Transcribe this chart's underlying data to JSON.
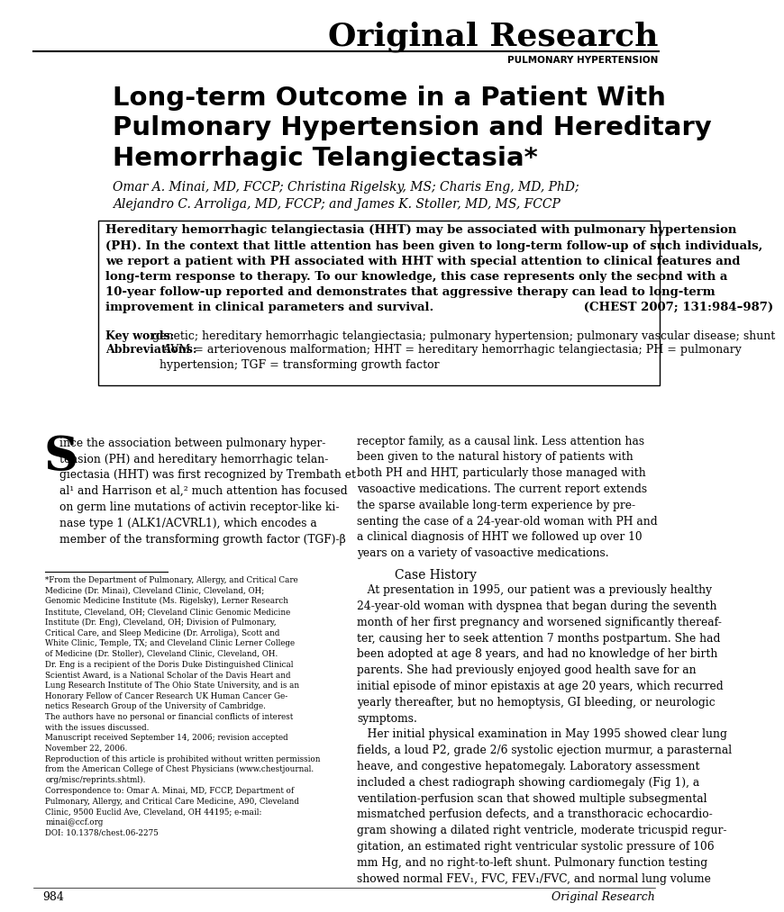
{
  "bg_color": "#ffffff",
  "header_title": "Original Research",
  "header_subtitle": "PULMONARY HYPERTENSION",
  "article_title": "Long-term Outcome in a Patient With\nPulmonary Hypertension and Hereditary\nHemorrhagic Telangiectasia*",
  "authors": "Omar A. Minai, MD, FCCP; Christina Rigelsky, MS; Charis Eng, MD, PhD;\nAlejandro C. Arroliga, MD, FCCP; and James K. Stoller, MD, MS, FCCP",
  "abstract_text": "Hereditary hemorrhagic telangiectasia (HHT) may be associated with pulmonary hypertension\n(PH). In the context that little attention has been given to long-term follow-up of such individuals,\nwe report a patient with PH associated with HHT with special attention to clinical features and\nlong-term response to therapy. To our knowledge, this case represents only the second with a\n10-year follow-up reported and demonstrates that aggressive therapy can lead to long-term\nimprovement in clinical parameters and survival.                                    (CHEST 2007; 131:984–987)",
  "keywords_label": "Key words:",
  "keywords_text": " genetic; hereditary hemorrhagic telangiectasia; pulmonary hypertension; pulmonary vascular disease; shunt",
  "abbrev_label": "Abbreviations:",
  "abbrev_text": " AVM = arteriovenous malformation; HHT = hereditary hemorrhagic telangiectasia; PH = pulmonary\nhypertension; TGF = transforming growth factor",
  "body_left_col": "ince the association between pulmonary hyper-\ntension (PH) and hereditary hemorrhagic telan-\ngiectasia (HHT) was first recognized by Trembath et\nal¹ and Harrison et al,² much attention has focused\non germ line mutations of activin receptor-like ki-\nnase type 1 (ALK1/ACVRL1), which encodes a\nmember of the transforming growth factor (TGF)-β",
  "body_right_col": "receptor family, as a causal link. Less attention has\nbeen given to the natural history of patients with\nboth PH and HHT, particularly those managed with\nvasoactive medications. The current report extends\nthe sparse available long-term experience by pre-\nsenting the case of a 24-year-old woman with PH and\na clinical diagnosis of HHT we followed up over 10\nyears on a variety of vasoactive medications.",
  "footnote_text": "*From the Department of Pulmonary, Allergy, and Critical Care\nMedicine (Dr. Minai), Cleveland Clinic, Cleveland, OH;\nGenomic Medicine Institute (Ms. Rigelsky), Lerner Research\nInstitute, Cleveland, OH; Cleveland Clinic Genomic Medicine\nInstitute (Dr. Eng), Cleveland, OH; Division of Pulmonary,\nCritical Care, and Sleep Medicine (Dr. Arroliga), Scott and\nWhite Clinic, Temple, TX; and Cleveland Clinic Lerner College\nof Medicine (Dr. Stoller), Cleveland Clinic, Cleveland, OH.\nDr. Eng is a recipient of the Doris Duke Distinguished Clinical\nScientist Award, is a National Scholar of the Davis Heart and\nLung Research Institute of The Ohio State University, and is an\nHonorary Fellow of Cancer Research UK Human Cancer Ge-\nnetics Research Group of the University of Cambridge.\nThe authors have no personal or financial conflicts of interest\nwith the issues discussed.\nManuscript received September 14, 2006; revision accepted\nNovember 22, 2006.\nReproduction of this article is prohibited without written permission\nfrom the American College of Chest Physicians (www.chestjournal.\norg/misc/reprints.shtml).\nCorrespondence to: Omar A. Minai, MD, FCCP, Department of\nPulmonary, Allergy, and Critical Care Medicine, A90, Cleveland\nClinic, 9500 Euclid Ave, Cleveland, OH 44195; e-mail:\nminai@ccf.org\nDOI: 10.1378/chest.06-2275",
  "case_history_title": "Case History",
  "case_history_text": "   At presentation in 1995, our patient was a previously healthy\n24-year-old woman with dyspnea that began during the seventh\nmonth of her first pregnancy and worsened significantly thereaf-\nter, causing her to seek attention 7 months postpartum. She had\nbeen adopted at age 8 years, and had no knowledge of her birth\nparents. She had previously enjoyed good health save for an\ninitial episode of minor epistaxis at age 20 years, which recurred\nyearly thereafter, but no hemoptysis, GI bleeding, or neurologic\nsymptoms.\n   Her initial physical examination in May 1995 showed clear lung\nfields, a loud P2, grade 2/6 systolic ejection murmur, a parasternal\nheave, and congestive hepatomegaly. Laboratory assessment\nincluded a chest radiograph showing cardiomegaly (Fig 1), a\nventilation-perfusion scan that showed multiple subsegmental\nmismatched perfusion defects, and a transthoracic echocardio-\ngram showing a dilated right ventricle, moderate tricuspid regur-\ngitation, an estimated right ventricular systolic pressure of 106\nmm Hg, and no right-to-left shunt. Pulmonary function testing\nshowed normal FEV₁, FVC, FEV₁/FVC, and normal lung volume",
  "page_number": "984",
  "page_label": "Original Research"
}
